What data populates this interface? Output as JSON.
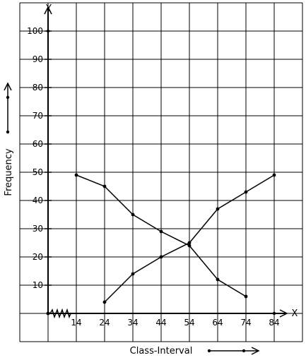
{
  "chart_data": {
    "type": "line",
    "title": "",
    "xlabel": "Class-Interval",
    "ylabel": "Frequency",
    "x_axis_name": "X",
    "y_axis_name": "Y",
    "x": [
      14,
      24,
      34,
      44,
      54,
      64,
      74,
      84
    ],
    "xlim": [
      4,
      89
    ],
    "ylim": [
      0,
      110
    ],
    "y_ticks": [
      10,
      20,
      30,
      40,
      50,
      60,
      70,
      80,
      90,
      100
    ],
    "grid": true,
    "axis_break": true,
    "series": [
      {
        "x": [
          14,
          24,
          34,
          44,
          54,
          64,
          74
        ],
        "values": [
          49,
          45,
          35,
          29,
          24,
          12,
          6
        ]
      },
      {
        "x": [
          24,
          34,
          44,
          54,
          64,
          74,
          84
        ],
        "values": [
          4,
          14,
          20,
          25,
          37,
          43,
          49
        ]
      }
    ]
  }
}
